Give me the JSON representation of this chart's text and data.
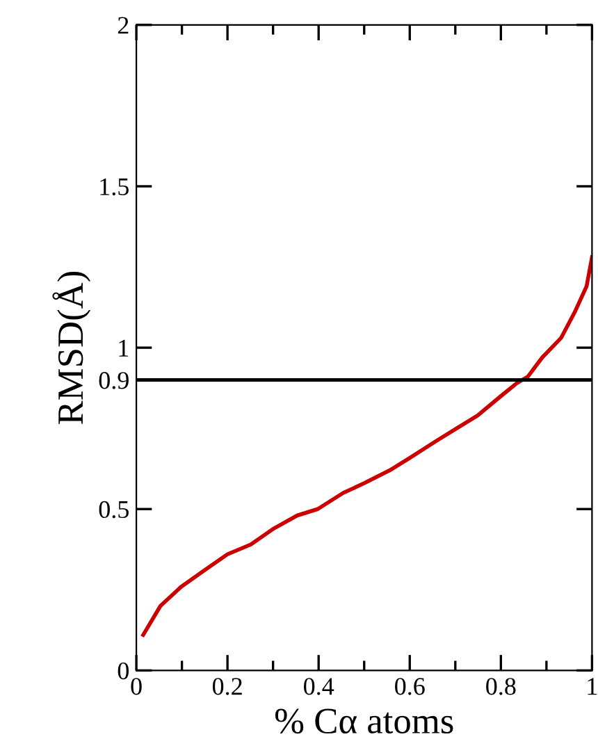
{
  "chart_data": {
    "type": "line",
    "xlabel": "% Cα atoms",
    "ylabel": "RMSD(Å)",
    "x": [
      0.015,
      0.053,
      0.099,
      0.149,
      0.2,
      0.251,
      0.302,
      0.353,
      0.398,
      0.454,
      0.5,
      0.556,
      0.602,
      0.657,
      0.703,
      0.749,
      0.8,
      0.835,
      0.859,
      0.891,
      0.932,
      0.962,
      0.988,
      1.0
    ],
    "series": [
      {
        "color": "#cc0000",
        "values": [
          0.11,
          0.2,
          0.26,
          0.31,
          0.36,
          0.39,
          0.44,
          0.48,
          0.5,
          0.55,
          0.58,
          0.62,
          0.66,
          0.71,
          0.75,
          0.79,
          0.85,
          0.89,
          0.91,
          0.97,
          1.03,
          1.11,
          1.19,
          1.28
        ]
      }
    ],
    "xlim": [
      0,
      1
    ],
    "xticks": [
      0,
      0.2,
      0.4,
      0.6,
      0.8,
      1
    ],
    "ylim": [
      0,
      2
    ],
    "yticks": [
      0,
      0.5,
      0.9,
      1,
      1.5,
      2
    ],
    "ref_lines": [
      {
        "axis": "y",
        "value": 0.9,
        "color": "#000000"
      }
    ],
    "grid": false,
    "legend": false,
    "marker": "none",
    "line_style": "solid"
  }
}
